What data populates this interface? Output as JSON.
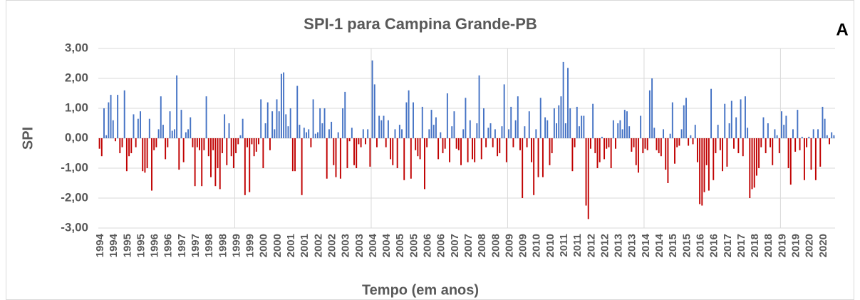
{
  "chart_data": {
    "type": "bar",
    "title": "SPI-1 para Campina Grande-PB",
    "annotation": "A",
    "ylabel": "SPI",
    "xlabel": "Tempo  (em anos)",
    "ylim": [
      -3,
      3
    ],
    "yticks": [
      {
        "value": -3,
        "label": "-3,00"
      },
      {
        "value": -2,
        "label": "-2,00"
      },
      {
        "value": -1,
        "label": "-1,00"
      },
      {
        "value": 0,
        "label": "0,00"
      },
      {
        "value": 1,
        "label": "1,00"
      },
      {
        "value": 2,
        "label": "2,00"
      },
      {
        "value": 3,
        "label": "3,00"
      }
    ],
    "grid": true,
    "colors": {
      "positive": "#4472c4",
      "negative": "#c00000"
    },
    "categories": [
      "1994",
      null,
      null,
      null,
      null,
      null,
      "1994",
      null,
      null,
      null,
      null,
      null,
      "1995",
      null,
      null,
      null,
      null,
      null,
      "1995",
      null,
      null,
      null,
      null,
      null,
      "1996",
      null,
      null,
      null,
      null,
      null,
      "1996",
      null,
      null,
      null,
      null,
      null,
      "1997",
      null,
      null,
      null,
      null,
      null,
      "1997",
      null,
      null,
      null,
      null,
      null,
      "1998",
      null,
      null,
      null,
      null,
      null,
      "1998",
      null,
      null,
      null,
      null,
      null,
      "1999",
      null,
      null,
      null,
      null,
      null,
      "1999",
      null,
      null,
      null,
      null,
      null,
      "2000",
      null,
      null,
      null,
      null,
      null,
      "2000",
      null,
      null,
      null,
      null,
      null,
      "2001",
      null,
      null,
      null,
      null,
      null,
      "2001",
      null,
      null,
      null,
      null,
      null,
      "2002",
      null,
      null,
      null,
      null,
      null,
      "2002",
      null,
      null,
      null,
      null,
      null,
      "2003",
      null,
      null,
      null,
      null,
      null,
      "2003",
      null,
      null,
      null,
      null,
      null,
      "2004",
      null,
      null,
      null,
      null,
      null,
      "2004",
      null,
      null,
      null,
      null,
      null,
      "2005",
      null,
      null,
      null,
      null,
      null,
      "2005",
      null,
      null,
      null,
      null,
      null,
      "2006",
      null,
      null,
      null,
      null,
      null,
      "2006",
      null,
      null,
      null,
      null,
      null,
      "2007",
      null,
      null,
      null,
      null,
      null,
      "2007",
      null,
      null,
      null,
      null,
      null,
      "2008",
      null,
      null,
      null,
      null,
      null,
      "2008",
      null,
      null,
      null,
      null,
      null,
      "2009",
      null,
      null,
      null,
      null,
      null,
      "2009",
      null,
      null,
      null,
      null,
      null,
      "2010",
      null,
      null,
      null,
      null,
      null,
      "2010",
      null,
      null,
      null,
      null,
      null,
      "2011",
      null,
      null,
      null,
      null,
      null,
      "2011",
      null,
      null,
      null,
      null,
      null,
      "2012",
      null,
      null,
      null,
      null,
      null,
      "2012",
      null,
      null,
      null,
      null,
      null,
      "2013",
      null,
      null,
      null,
      null,
      null,
      "2013",
      null,
      null,
      null,
      null,
      null,
      "2014",
      null,
      null,
      null,
      null,
      null,
      "2014",
      null,
      null,
      null,
      null,
      null,
      "2015",
      null,
      null,
      null,
      null,
      null,
      "2015",
      null,
      null,
      null,
      null,
      null,
      "2016",
      null,
      null,
      null,
      null,
      null,
      "2016",
      null,
      null,
      null,
      null,
      null,
      "2017",
      null,
      null,
      null,
      null,
      null,
      "2017",
      null,
      null,
      null,
      null,
      null,
      "2018",
      null,
      null,
      null,
      null,
      null,
      "2018",
      null,
      null,
      null,
      null,
      null,
      "2019",
      null,
      null,
      null,
      null,
      null,
      "2019",
      null,
      null,
      null,
      null,
      null,
      "2020",
      null,
      null,
      null,
      null,
      null,
      "2020",
      null,
      null,
      null,
      null,
      null
    ],
    "values": [
      -0.35,
      -0.6,
      1.0,
      0.1,
      1.2,
      1.45,
      0.6,
      -0.1,
      1.45,
      -0.5,
      -0.3,
      1.6,
      -1.1,
      -0.6,
      -0.5,
      0.8,
      -0.3,
      0.65,
      0.9,
      -1.1,
      -1.15,
      -1.0,
      0.65,
      -1.75,
      -0.4,
      -0.3,
      0.3,
      1.4,
      0.45,
      -0.7,
      -0.3,
      0.9,
      0.25,
      0.3,
      2.1,
      -1.05,
      0.95,
      -0.8,
      0.2,
      0.3,
      0.7,
      -0.3,
      -1.6,
      -0.3,
      -0.4,
      -1.6,
      -0.4,
      1.4,
      -0.6,
      -1.3,
      -0.4,
      -1.6,
      -1.0,
      -1.7,
      -0.5,
      0.8,
      -0.9,
      0.5,
      -0.6,
      -1.0,
      -0.5,
      -0.2,
      0.1,
      0.65,
      -1.9,
      -0.3,
      -1.8,
      -0.2,
      -0.6,
      -0.45,
      -0.2,
      1.3,
      -1.0,
      0.5,
      1.2,
      -0.4,
      0.9,
      0.3,
      1.3,
      0.9,
      2.15,
      2.2,
      0.8,
      0.4,
      1.0,
      -1.1,
      -1.1,
      1.75,
      0.45,
      -1.9,
      0.35,
      0.2,
      0.3,
      -0.3,
      1.3,
      0.15,
      0.2,
      1.0,
      0.5,
      1.0,
      -1.35,
      0.3,
      0.55,
      -0.9,
      -1.3,
      0.2,
      -1.35,
      1.0,
      1.55,
      -1.0,
      -0.1,
      0.35,
      -0.9,
      -1.0,
      -0.2,
      -0.3,
      0.3,
      -0.2,
      0.3,
      -0.95,
      2.6,
      1.8,
      -0.3,
      0.75,
      0.6,
      0.75,
      -0.3,
      0.6,
      -0.7,
      -0.9,
      0.3,
      -1.0,
      0.45,
      0.3,
      -1.4,
      1.2,
      1.6,
      -1.35,
      1.2,
      -0.4,
      -0.6,
      -0.7,
      1.05,
      -1.7,
      -0.3,
      0.3,
      0.95,
      0.45,
      0.7,
      -0.7,
      0.2,
      -0.5,
      -0.35,
      1.5,
      -0.8,
      0.4,
      0.9,
      -0.35,
      -0.4,
      -0.9,
      0.3,
      1.35,
      -0.8,
      0.6,
      -0.7,
      -0.8,
      0.5,
      2.1,
      -0.7,
      1.0,
      -0.3,
      0.35,
      0.5,
      -0.3,
      0.3,
      -0.6,
      -0.5,
      0.4,
      1.8,
      -0.8,
      0.3,
      1.05,
      -0.3,
      0.6,
      1.4,
      -0.4,
      -2.0,
      0.4,
      -0.3,
      0.9,
      -0.8,
      -1.9,
      0.3,
      -1.3,
      1.35,
      -1.3,
      0.7,
      0.6,
      -0.9,
      -0.5,
      1.0,
      0.5,
      1.1,
      1.4,
      2.55,
      0.5,
      2.35,
      1.0,
      -1.1,
      -0.3,
      1.05,
      0.4,
      0.75,
      0.75,
      -2.25,
      -2.7,
      -0.35,
      1.15,
      -0.5,
      -1.0,
      -0.8,
      0.05,
      -0.7,
      -0.35,
      -0.3,
      -1.0,
      0.6,
      -0.35,
      0.5,
      0.6,
      0.3,
      0.95,
      0.9,
      0.4,
      -0.45,
      -0.3,
      -0.9,
      -1.15,
      0.75,
      -0.5,
      -0.35,
      -0.4,
      1.6,
      2.0,
      0.35,
      -0.4,
      -0.5,
      -0.6,
      0.3,
      -1.05,
      -1.5,
      0.15,
      1.2,
      -0.85,
      -0.3,
      -0.25,
      0.3,
      1.1,
      1.35,
      -0.25,
      0.1,
      -0.2,
      0.45,
      -0.8,
      -2.2,
      -2.25,
      -1.8,
      -0.9,
      -1.75,
      1.65,
      -1.4,
      -0.5,
      0.45,
      -0.4,
      -1.1,
      1.15,
      -0.95,
      0.5,
      1.25,
      -0.35,
      0.7,
      -0.5,
      1.3,
      -0.6,
      1.4,
      0.35,
      -2.0,
      -1.7,
      -1.65,
      -1.25,
      -1.0,
      -0.3,
      0.7,
      -0.5,
      0.5,
      -0.3,
      -0.9,
      0.3,
      0.1,
      -0.5,
      0.9,
      0.45,
      0.75,
      -1.0,
      -1.55,
      0.3,
      -0.45,
      0.95,
      -0.4,
      0.05,
      -1.4,
      -0.3,
      0.05,
      -1.05,
      0.3,
      -1.4,
      0.3,
      -0.95,
      1.05,
      0.65,
      0.1,
      -0.2,
      0.2,
      0.1
    ]
  }
}
